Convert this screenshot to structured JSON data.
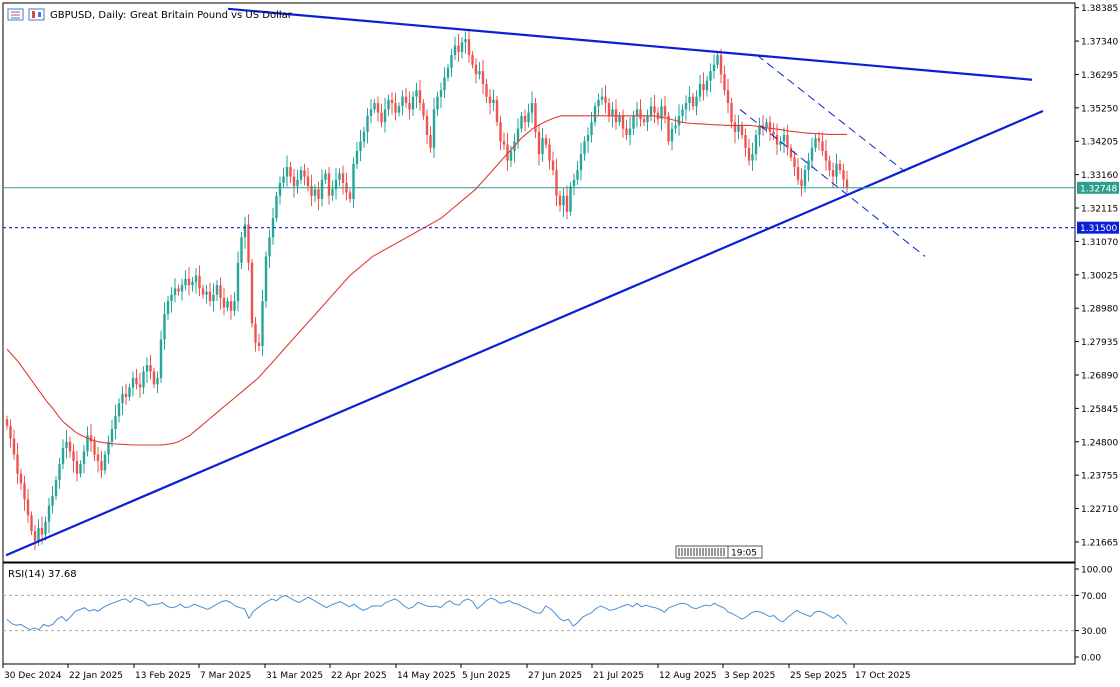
{
  "header": {
    "symbol": "GBPUSD, Daily:",
    "description": "Great Britain Pound vs US Dollar",
    "icons": [
      "candles-icon",
      "chart-type-icon"
    ]
  },
  "colors": {
    "bull": "#26a69a",
    "bear": "#ef5350",
    "ma": "#e53935",
    "trendline": "#0b1fd6",
    "price_line": "#2e9e8e",
    "rsi": "#4a90d9",
    "label_bg": "#0b1fd6"
  },
  "chart_data": [
    {
      "type": "candlestick",
      "title": "GBPUSD, Daily: Great Britain Pound vs US Dollar",
      "ylim": [
        1.211,
        1.385
      ],
      "y_ticks": [
        "1.38385",
        "1.37340",
        "1.36295",
        "1.35250",
        "1.34205",
        "1.33160",
        "1.32115",
        "1.31070",
        "1.30025",
        "1.28980",
        "1.27935",
        "1.26890",
        "1.25845",
        "1.24800",
        "1.23755",
        "1.22710",
        "1.21665"
      ],
      "x_ticks": [
        "30 Dec 2024",
        "22 Jan 2025",
        "13 Feb 2025",
        "7 Mar 2025",
        "31 Mar 2025",
        "22 Apr 2025",
        "14 May 2025",
        "5 Jun 2025",
        "27 Jun 2025",
        "21 Jul 2025",
        "12 Aug 2025",
        "3 Sep 2025",
        "25 Sep 2025",
        "17 Oct 2025"
      ],
      "current_price": "1.32748",
      "level_label": "1.31500",
      "time_label": "19:05",
      "close_series": [
        1.253,
        1.249,
        1.244,
        1.238,
        1.235,
        1.23,
        1.225,
        1.22,
        1.217,
        1.221,
        1.219,
        1.223,
        1.228,
        1.231,
        1.236,
        1.241,
        1.246,
        1.248,
        1.245,
        1.242,
        1.238,
        1.241,
        1.245,
        1.25,
        1.248,
        1.244,
        1.242,
        1.239,
        1.244,
        1.248,
        1.252,
        1.256,
        1.26,
        1.263,
        1.262,
        1.265,
        1.268,
        1.266,
        1.265,
        1.27,
        1.272,
        1.27,
        1.266,
        1.268,
        1.28,
        1.288,
        1.292,
        1.294,
        1.296,
        1.295,
        1.297,
        1.299,
        1.297,
        1.298,
        1.3,
        1.296,
        1.294,
        1.295,
        1.292,
        1.294,
        1.297,
        1.293,
        1.29,
        1.292,
        1.289,
        1.292,
        1.304,
        1.312,
        1.316,
        1.304,
        1.285,
        1.279,
        1.278,
        1.292,
        1.306,
        1.312,
        1.318,
        1.325,
        1.329,
        1.331,
        1.334,
        1.331,
        1.328,
        1.33,
        1.333,
        1.331,
        1.328,
        1.325,
        1.327,
        1.324,
        1.33,
        1.332,
        1.325,
        1.327,
        1.33,
        1.332,
        1.329,
        1.326,
        1.324,
        1.335,
        1.339,
        1.342,
        1.345,
        1.35,
        1.352,
        1.354,
        1.351,
        1.348,
        1.352,
        1.355,
        1.354,
        1.351,
        1.353,
        1.356,
        1.354,
        1.352,
        1.356,
        1.358,
        1.354,
        1.35,
        1.344,
        1.34,
        1.352,
        1.356,
        1.358,
        1.362,
        1.365,
        1.369,
        1.372,
        1.37,
        1.373,
        1.374,
        1.369,
        1.366,
        1.363,
        1.364,
        1.36,
        1.356,
        1.354,
        1.355,
        1.348,
        1.342,
        1.341,
        1.336,
        1.339,
        1.342,
        1.346,
        1.35,
        1.348,
        1.351,
        1.354,
        1.345,
        1.338,
        1.343,
        1.341,
        1.336,
        1.333,
        1.325,
        1.322,
        1.325,
        1.32,
        1.328,
        1.33,
        1.333,
        1.338,
        1.342,
        1.344,
        1.348,
        1.353,
        1.355,
        1.356,
        1.354,
        1.35,
        1.352,
        1.348,
        1.35,
        1.346,
        1.344,
        1.346,
        1.35,
        1.352,
        1.349,
        1.348,
        1.35,
        1.353,
        1.351,
        1.349,
        1.353,
        1.35,
        1.342,
        1.346,
        1.347,
        1.35,
        1.352,
        1.354,
        1.356,
        1.353,
        1.356,
        1.36,
        1.358,
        1.361,
        1.364,
        1.366,
        1.369,
        1.363,
        1.358,
        1.354,
        1.348,
        1.345,
        1.347,
        1.344,
        1.34,
        1.336,
        1.338,
        1.344,
        1.347,
        1.346,
        1.348,
        1.345,
        1.344,
        1.341,
        1.342,
        1.344,
        1.34,
        1.337,
        1.334,
        1.33,
        1.328,
        1.333,
        1.336,
        1.34,
        1.343,
        1.342,
        1.339,
        1.336,
        1.333,
        1.331,
        1.335,
        1.333,
        1.33,
        1.3275
      ],
      "ma_series": [
        1.277,
        1.275,
        1.273,
        1.2705,
        1.268,
        1.2655,
        1.263,
        1.2605,
        1.2585,
        1.256,
        1.254,
        1.2525,
        1.251,
        1.25,
        1.2492,
        1.2485,
        1.248,
        1.2477,
        1.2475,
        1.2473,
        1.2472,
        1.2471,
        1.247,
        1.247,
        1.247,
        1.247,
        1.247,
        1.247,
        1.2472,
        1.2475,
        1.248,
        1.249,
        1.25,
        1.2515,
        1.253,
        1.2545,
        1.256,
        1.2575,
        1.259,
        1.2605,
        1.262,
        1.2635,
        1.265,
        1.2665,
        1.268,
        1.27,
        1.272,
        1.274,
        1.276,
        1.278,
        1.28,
        1.282,
        1.284,
        1.286,
        1.288,
        1.29,
        1.292,
        1.294,
        1.296,
        1.298,
        1.3,
        1.3015,
        1.303,
        1.3045,
        1.306,
        1.307,
        1.308,
        1.309,
        1.31,
        1.311,
        1.312,
        1.313,
        1.314,
        1.315,
        1.316,
        1.317,
        1.318,
        1.3195,
        1.321,
        1.3225,
        1.324,
        1.3255,
        1.327,
        1.329,
        1.331,
        1.333,
        1.335,
        1.337,
        1.339,
        1.341,
        1.343,
        1.3445,
        1.346,
        1.347,
        1.348,
        1.3488,
        1.3495,
        1.35,
        1.35,
        1.35,
        1.35,
        1.35,
        1.35,
        1.35,
        1.35,
        1.35,
        1.35,
        1.35,
        1.35,
        1.35,
        1.35,
        1.35,
        1.35,
        1.35,
        1.3498,
        1.3495,
        1.349,
        1.3485,
        1.348,
        1.3478,
        1.3476,
        1.3475,
        1.3474,
        1.3473,
        1.3472,
        1.3471,
        1.347,
        1.347,
        1.347,
        1.347,
        1.347,
        1.3468,
        1.3465,
        1.3462,
        1.346,
        1.3458,
        1.3455,
        1.3452,
        1.345,
        1.3448,
        1.3446,
        1.3445,
        1.3444,
        1.3443,
        1.3442,
        1.3442,
        1.3442,
        1.3442
      ]
    },
    {
      "type": "line",
      "title": "RSI(14) 37.68",
      "ylim": [
        0,
        100
      ],
      "y_ticks": [
        "100.00",
        "70.00",
        "30.00",
        "0.00"
      ],
      "levels": [
        70,
        30
      ],
      "values": [
        43,
        38,
        36,
        37,
        34,
        31,
        33,
        31,
        37,
        35,
        37,
        43,
        46,
        41,
        46,
        52,
        54,
        56,
        52,
        54,
        52,
        56,
        59,
        61,
        63,
        65,
        66,
        62,
        67,
        65,
        63,
        58,
        60,
        60,
        62,
        58,
        56,
        57,
        60,
        56,
        57,
        60,
        58,
        56,
        54,
        57,
        60,
        63,
        64,
        62,
        58,
        56,
        55,
        44,
        52,
        56,
        60,
        63,
        66,
        64,
        68,
        70,
        67,
        64,
        62,
        65,
        68,
        65,
        62,
        59,
        56,
        59,
        61,
        63,
        60,
        57,
        60,
        56,
        53,
        55,
        58,
        58,
        58,
        62,
        64,
        66,
        63,
        58,
        55,
        57,
        62,
        60,
        58,
        57,
        58,
        56,
        61,
        64,
        60,
        59,
        64,
        66,
        63,
        55,
        59,
        64,
        67,
        65,
        61,
        62,
        64,
        61,
        60,
        57,
        55,
        52,
        50,
        50,
        58,
        55,
        50,
        44,
        41,
        43,
        35,
        39,
        45,
        48,
        50,
        55,
        58,
        56,
        53,
        54,
        56,
        58,
        60,
        57,
        61,
        57,
        59,
        57,
        56,
        54,
        51,
        56,
        58,
        60,
        61,
        60,
        56,
        55,
        57,
        59,
        58,
        61,
        58,
        56,
        51,
        49,
        46,
        43,
        46,
        50,
        52,
        51,
        49,
        46,
        47,
        42,
        40,
        45,
        49,
        53,
        50,
        48,
        46,
        51,
        52,
        50,
        47,
        44,
        48,
        43,
        37
      ]
    }
  ]
}
